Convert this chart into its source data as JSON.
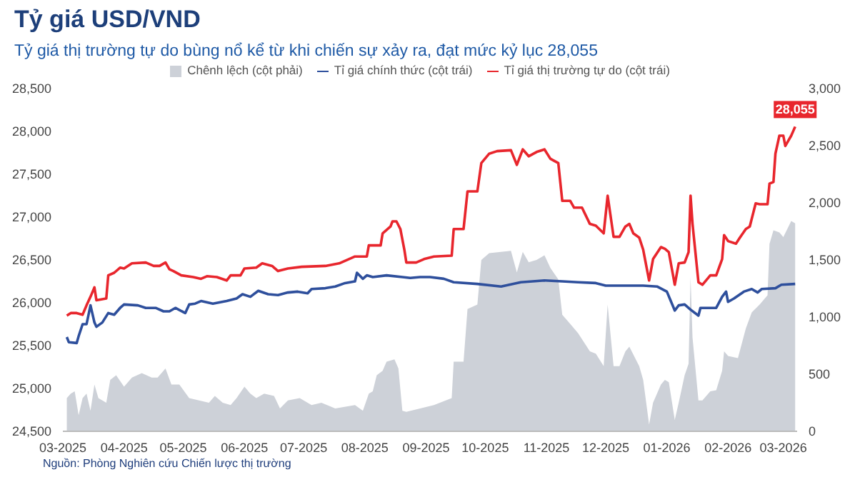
{
  "chart_data": {
    "type": "line",
    "title": "Tỷ giá USD/VND",
    "subtitle": "Tỷ giá thị trường tự do bùng nổ kể từ khi chiến sự xảy ra, đạt mức kỷ lục 28,055",
    "annotations": [
      {
        "text": "28,055",
        "x": "2026-03-07",
        "y": 28055
      },
      "Nguồn: Phòng Nghiên cứu Chiến lược thị trường"
    ],
    "legend": "top",
    "xlim": [
      "2025-03-01",
      "2026-03-08"
    ],
    "xticks": [
      {
        "value": "2025-03-01",
        "label": "03-2025"
      },
      {
        "value": "2025-04-01",
        "label": "04-2025"
      },
      {
        "value": "2025-05-01",
        "label": "05-2025"
      },
      {
        "value": "2025-06-01",
        "label": "06-2025"
      },
      {
        "value": "2025-07-01",
        "label": "07-2025"
      },
      {
        "value": "2025-08-01",
        "label": "08-2025"
      },
      {
        "value": "2025-09-01",
        "label": "09-2025"
      },
      {
        "value": "2025-10-01",
        "label": "10-2025"
      },
      {
        "value": "2025-11-01",
        "label": "11-2025"
      },
      {
        "value": "2025-12-01",
        "label": "12-2025"
      },
      {
        "value": "2026-01-01",
        "label": "01-2026"
      },
      {
        "value": "2026-02-01",
        "label": "02-2026"
      },
      {
        "value": "2026-03-01",
        "label": "03-2026"
      }
    ],
    "ylim": [
      24500,
      28500
    ],
    "yticks": [
      {
        "value": 24500,
        "label": "24,500"
      },
      {
        "value": 25000,
        "label": "25,000"
      },
      {
        "value": 25500,
        "label": "25,500"
      },
      {
        "value": 26000,
        "label": "26,000"
      },
      {
        "value": 26500,
        "label": "26,500"
      },
      {
        "value": 27000,
        "label": "27,000"
      },
      {
        "value": 27500,
        "label": "27,500"
      },
      {
        "value": 28000,
        "label": "28,000"
      },
      {
        "value": 28500,
        "label": "28,500"
      }
    ],
    "y2lim": [
      0,
      3000
    ],
    "y2ticks": [
      0,
      500,
      {
        "value": 1000,
        "label": "1,000"
      },
      {
        "value": 1500,
        "label": "1,500"
      },
      {
        "value": 2000,
        "label": "2,000"
      },
      {
        "value": 2500,
        "label": "2,500"
      },
      {
        "value": 3000,
        "label": "3,000"
      }
    ],
    "series": [
      {
        "name": "Chênh lệch (cột phải)",
        "type": "area",
        "axis": "y2",
        "color": "#cdd1d8",
        "x": [
          "2025-03-03",
          "2025-03-05",
          "2025-03-07",
          "2025-03-09",
          "2025-03-11",
          "2025-03-13",
          "2025-03-15",
          "2025-03-17",
          "2025-03-19",
          "2025-03-23",
          "2025-03-25",
          "2025-03-28",
          "2025-04-01",
          "2025-04-05",
          "2025-04-10",
          "2025-04-15",
          "2025-04-18",
          "2025-04-22",
          "2025-04-25",
          "2025-04-29",
          "2025-05-04",
          "2025-05-09",
          "2025-05-14",
          "2025-05-17",
          "2025-05-21",
          "2025-05-25",
          "2025-05-28",
          "2025-06-01",
          "2025-06-04",
          "2025-06-07",
          "2025-06-11",
          "2025-06-16",
          "2025-06-19",
          "2025-06-23",
          "2025-06-29",
          "2025-07-05",
          "2025-07-10",
          "2025-07-17",
          "2025-07-27",
          "2025-07-31",
          "2025-08-03",
          "2025-08-05",
          "2025-08-07",
          "2025-08-10",
          "2025-08-12",
          "2025-08-16",
          "2025-08-18",
          "2025-08-20",
          "2025-08-22",
          "2025-08-29",
          "2025-09-05",
          "2025-09-14",
          "2025-09-15",
          "2025-09-20",
          "2025-09-22",
          "2025-09-27",
          "2025-09-29",
          "2025-10-03",
          "2025-10-14",
          "2025-10-17",
          "2025-10-20",
          "2025-10-23",
          "2025-10-27",
          "2025-10-31",
          "2025-11-03",
          "2025-11-07",
          "2025-11-09",
          "2025-11-13",
          "2025-11-17",
          "2025-11-20",
          "2025-11-23",
          "2025-11-26",
          "2025-11-30",
          "2025-12-02",
          "2025-12-05",
          "2025-12-08",
          "2025-12-11",
          "2025-12-13",
          "2025-12-18",
          "2025-12-20",
          "2025-12-23",
          "2025-12-25",
          "2025-12-29",
          "2025-12-31",
          "2026-01-02",
          "2026-01-05",
          "2026-01-07",
          "2026-01-10",
          "2026-01-12",
          "2026-01-13",
          "2026-01-14",
          "2026-01-17",
          "2026-01-19",
          "2026-01-23",
          "2026-01-26",
          "2026-01-29",
          "2026-01-30",
          "2026-02-01",
          "2026-02-06",
          "2026-02-10",
          "2026-02-13",
          "2026-02-17",
          "2026-02-21",
          "2026-02-22",
          "2026-02-24",
          "2026-02-27",
          "2026-03-01",
          "2026-03-05",
          "2026-03-07"
        ],
        "values": [
          290,
          330,
          350,
          140,
          290,
          330,
          180,
          410,
          290,
          250,
          450,
          490,
          390,
          470,
          510,
          470,
          470,
          550,
          410,
          410,
          290,
          270,
          250,
          310,
          250,
          230,
          290,
          390,
          330,
          290,
          330,
          310,
          200,
          270,
          290,
          230,
          250,
          200,
          230,
          180,
          330,
          350,
          490,
          530,
          610,
          630,
          550,
          180,
          170,
          200,
          230,
          290,
          610,
          610,
          1070,
          1110,
          1500,
          1560,
          1580,
          1390,
          1570,
          1480,
          1500,
          1540,
          1430,
          1330,
          1020,
          940,
          860,
          780,
          700,
          680,
          570,
          1110,
          570,
          570,
          700,
          740,
          570,
          450,
          60,
          250,
          410,
          450,
          430,
          100,
          250,
          490,
          590,
          1350,
          820,
          270,
          270,
          350,
          360,
          530,
          700,
          660,
          640,
          900,
          1040,
          1110,
          1190,
          1640,
          1760,
          1740,
          1700,
          1840,
          1820
        ]
      },
      {
        "name": "Tỉ giá chính thức (cột trái)",
        "color": "#2e4f9c",
        "x": [
          "2025-03-03",
          "2025-03-04",
          "2025-03-08",
          "2025-03-09",
          "2025-03-11",
          "2025-03-13",
          "2025-03-15",
          "2025-03-17",
          "2025-03-18",
          "2025-03-21",
          "2025-03-24",
          "2025-03-27",
          "2025-03-30",
          "2025-04-01",
          "2025-04-08",
          "2025-04-12",
          "2025-04-17",
          "2025-04-21",
          "2025-04-24",
          "2025-04-27",
          "2025-05-02",
          "2025-05-04",
          "2025-05-07",
          "2025-05-10",
          "2025-05-16",
          "2025-05-23",
          "2025-05-28",
          "2025-05-31",
          "2025-06-04",
          "2025-06-08",
          "2025-06-13",
          "2025-06-18",
          "2025-06-23",
          "2025-06-28",
          "2025-07-03",
          "2025-07-05",
          "2025-07-12",
          "2025-07-17",
          "2025-07-22",
          "2025-07-27",
          "2025-07-28",
          "2025-07-31",
          "2025-08-02",
          "2025-08-05",
          "2025-08-12",
          "2025-08-20",
          "2025-08-24",
          "2025-08-29",
          "2025-09-03",
          "2025-09-10",
          "2025-09-15",
          "2025-09-27",
          "2025-10-09",
          "2025-10-19",
          "2025-10-31",
          "2025-11-09",
          "2025-11-17",
          "2025-11-26",
          "2025-12-01",
          "2025-12-20",
          "2025-12-27",
          "2026-01-01",
          "2026-01-05",
          "2026-01-07",
          "2026-01-10",
          "2026-01-13",
          "2026-01-17",
          "2026-01-18",
          "2026-01-26",
          "2026-01-29",
          "2026-01-31",
          "2026-02-01",
          "2026-02-04",
          "2026-02-09",
          "2026-02-13",
          "2026-02-16",
          "2026-02-18",
          "2026-02-25",
          "2026-02-28",
          "2026-03-07"
        ],
        "values": [
          25600,
          25540,
          25530,
          25610,
          25750,
          25750,
          25970,
          25770,
          25720,
          25770,
          25880,
          25860,
          25940,
          25980,
          25970,
          25940,
          25940,
          25900,
          25900,
          25940,
          25880,
          25980,
          25990,
          26020,
          25990,
          26020,
          26050,
          26100,
          26070,
          26140,
          26100,
          26090,
          26120,
          26130,
          26110,
          26160,
          26170,
          26190,
          26230,
          26250,
          26350,
          26280,
          26320,
          26300,
          26320,
          26300,
          26290,
          26300,
          26300,
          26280,
          26240,
          26220,
          26190,
          26240,
          26260,
          26250,
          26240,
          26230,
          26200,
          26200,
          26190,
          26130,
          25910,
          25970,
          25980,
          25920,
          25850,
          25940,
          25940,
          26070,
          26130,
          26010,
          26050,
          26130,
          26160,
          26120,
          26160,
          26170,
          26210,
          26220
        ]
      },
      {
        "name": "Tỉ giá thị trường tự do (cột trái)",
        "color": "#e8262d",
        "x": [
          "2025-03-03",
          "2025-03-05",
          "2025-03-08",
          "2025-03-11",
          "2025-03-13",
          "2025-03-15",
          "2025-03-17",
          "2025-03-18",
          "2025-03-23",
          "2025-03-24",
          "2025-03-27",
          "2025-03-30",
          "2025-04-01",
          "2025-04-05",
          "2025-04-12",
          "2025-04-16",
          "2025-04-19",
          "2025-04-22",
          "2025-04-24",
          "2025-04-26",
          "2025-04-30",
          "2025-05-06",
          "2025-05-10",
          "2025-05-13",
          "2025-05-18",
          "2025-05-23",
          "2025-05-25",
          "2025-05-30",
          "2025-06-01",
          "2025-06-07",
          "2025-06-10",
          "2025-06-15",
          "2025-06-18",
          "2025-06-23",
          "2025-06-30",
          "2025-07-12",
          "2025-07-19",
          "2025-07-27",
          "2025-08-02",
          "2025-08-03",
          "2025-08-09",
          "2025-08-10",
          "2025-08-14",
          "2025-08-15",
          "2025-08-17",
          "2025-08-19",
          "2025-08-21",
          "2025-08-22",
          "2025-08-27",
          "2025-08-31",
          "2025-09-05",
          "2025-09-14",
          "2025-09-15",
          "2025-09-20",
          "2025-09-22",
          "2025-09-27",
          "2025-09-29",
          "2025-10-03",
          "2025-10-07",
          "2025-10-14",
          "2025-10-17",
          "2025-10-20",
          "2025-10-23",
          "2025-10-27",
          "2025-10-31",
          "2025-11-03",
          "2025-11-07",
          "2025-11-09",
          "2025-11-13",
          "2025-11-15",
          "2025-11-19",
          "2025-11-23",
          "2025-11-26",
          "2025-11-30",
          "2025-12-02",
          "2025-12-05",
          "2025-12-08",
          "2025-12-11",
          "2025-12-13",
          "2025-12-15",
          "2025-12-18",
          "2025-12-20",
          "2025-12-23",
          "2025-12-25",
          "2025-12-29",
          "2025-12-31",
          "2026-01-02",
          "2026-01-05",
          "2026-01-07",
          "2026-01-10",
          "2026-01-12",
          "2026-01-13",
          "2026-01-14",
          "2026-01-17",
          "2026-01-19",
          "2026-01-23",
          "2026-01-26",
          "2026-01-29",
          "2026-01-30",
          "2026-02-01",
          "2026-02-05",
          "2026-02-07",
          "2026-02-10",
          "2026-02-12",
          "2026-02-15",
          "2026-02-17",
          "2026-02-21",
          "2026-02-22",
          "2026-02-24",
          "2026-02-25",
          "2026-02-27",
          "2026-03-01",
          "2026-03-02",
          "2026-03-05",
          "2026-03-07"
        ],
        "values": [
          25850,
          25880,
          25880,
          25860,
          25970,
          26070,
          26180,
          26030,
          26050,
          26320,
          26350,
          26410,
          26400,
          26460,
          26470,
          26430,
          26430,
          26470,
          26390,
          26370,
          26320,
          26300,
          26280,
          26310,
          26300,
          26260,
          26320,
          26320,
          26400,
          26410,
          26460,
          26430,
          26370,
          26400,
          26420,
          26430,
          26460,
          26540,
          26540,
          26670,
          26670,
          26810,
          26890,
          26950,
          26950,
          26860,
          26620,
          26470,
          26470,
          26510,
          26540,
          26550,
          26860,
          26860,
          27300,
          27300,
          27630,
          27740,
          27770,
          27780,
          27610,
          27790,
          27710,
          27760,
          27790,
          27680,
          27630,
          27190,
          27190,
          27110,
          27110,
          26920,
          26900,
          26810,
          27250,
          26770,
          26770,
          26890,
          26920,
          26810,
          26760,
          26620,
          26260,
          26510,
          26650,
          26630,
          26590,
          26210,
          26460,
          26470,
          26590,
          27250,
          26920,
          26240,
          26210,
          26320,
          26320,
          26510,
          26790,
          26720,
          26690,
          26760,
          26860,
          26890,
          27160,
          27150,
          27150,
          27390,
          27410,
          27740,
          27950,
          27950,
          27830,
          27950,
          28055
        ]
      }
    ]
  }
}
